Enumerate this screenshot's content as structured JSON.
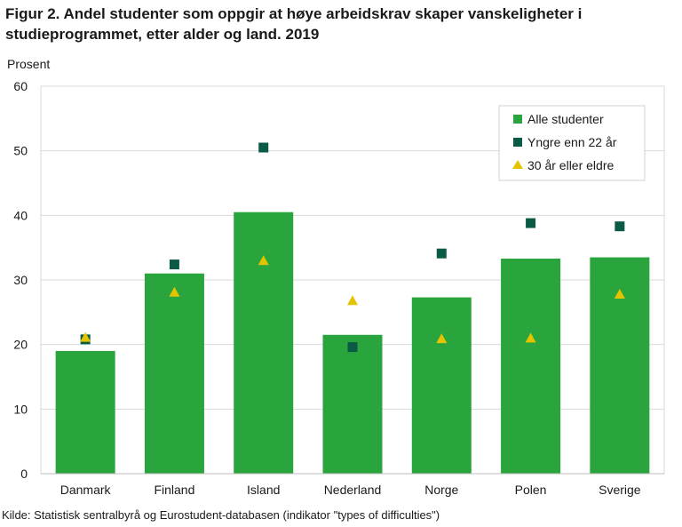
{
  "title": "Figur 2. Andel studenter som oppgir at høye arbeidskrav skaper vanskeligheter i studieprogrammet, etter alder og land. 2019",
  "ylabel": "Prosent",
  "source": "Kilde: Statistisk sentralbyrå og Eurostudent-databasen (indikator \"types of difficulties\")",
  "colors": {
    "bar": "#2aa43c",
    "square": "#0b5a45",
    "triangle": "#e4c400",
    "grid": "#d9d9d9"
  },
  "chart_data": {
    "type": "bar",
    "categories": [
      "Danmark",
      "Finland",
      "Island",
      "Nederland",
      "Norge",
      "Polen",
      "Sverige"
    ],
    "ylim": [
      0,
      60
    ],
    "yticks": [
      0,
      10,
      20,
      30,
      40,
      50,
      60
    ],
    "grid": true,
    "legend_position": "top-right",
    "series": [
      {
        "name": "Alle studenter",
        "kind": "bar",
        "values": [
          19.0,
          31.0,
          40.5,
          21.5,
          27.3,
          33.3,
          33.5
        ]
      },
      {
        "name": "Yngre enn 22 år",
        "kind": "square",
        "values": [
          20.8,
          32.4,
          50.5,
          19.6,
          34.1,
          38.8,
          38.3
        ]
      },
      {
        "name": "30 år eller eldre",
        "kind": "triangle",
        "values": [
          21.1,
          28.1,
          33.0,
          26.8,
          20.9,
          21.0,
          27.8
        ]
      }
    ]
  }
}
